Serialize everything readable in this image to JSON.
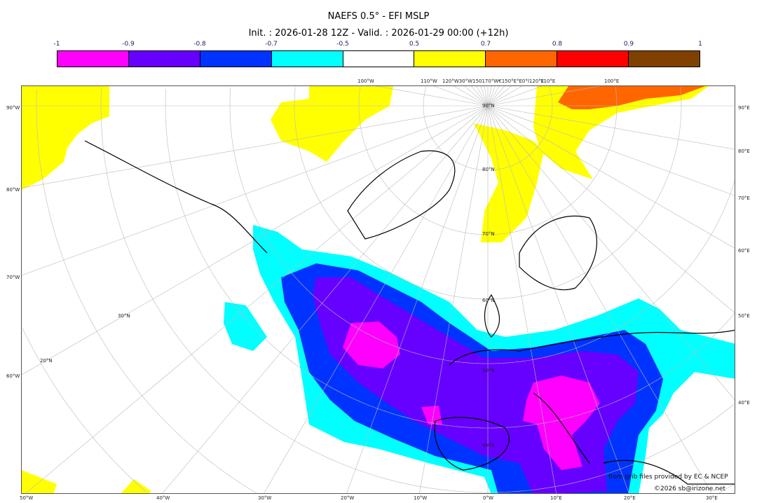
{
  "title": "NAEFS 0.5° - EFI MSLP",
  "subtitle": "Init. : 2026-01-28 12Z - Valid. : 2026-01-29 00:00 (+12h)",
  "colorbar": {
    "ticks": [
      "-1",
      "-0.9",
      "-0.8",
      "-0.7",
      "-0.5",
      "0.5",
      "0.7",
      "0.8",
      "0.9",
      "1"
    ],
    "colors": [
      "#ff00ff",
      "#6600ff",
      "#0033ff",
      "#00ffff",
      "#ffffff",
      "#ffff00",
      "#ff6600",
      "#ff0000",
      "#804000"
    ]
  },
  "map": {
    "top_labels": [
      "100°W",
      "110°W",
      "120°W30°W150170°W€150°E°E0°I120°E",
      "110°E",
      "100°E"
    ],
    "bottom_labels": [
      "50°W",
      "40°W",
      "30°W",
      "20°W",
      "10°W",
      "0°W",
      "10°E",
      "20°E",
      "30°E"
    ],
    "left_labels": [
      "90°W",
      "80°W",
      "70°W",
      "60°W"
    ],
    "right_labels": [
      "90°E",
      "80°E",
      "70°E",
      "60°E",
      "50°E",
      "40°E"
    ],
    "lat_labels": [
      "90°N",
      "80°N",
      "70°N",
      "60°N",
      "50°N",
      "40°N",
      "30°N",
      "20°N"
    ],
    "source_note": "from grib files provided by EC & NCEP",
    "copyright": "©2026 sb@irizone.net"
  }
}
